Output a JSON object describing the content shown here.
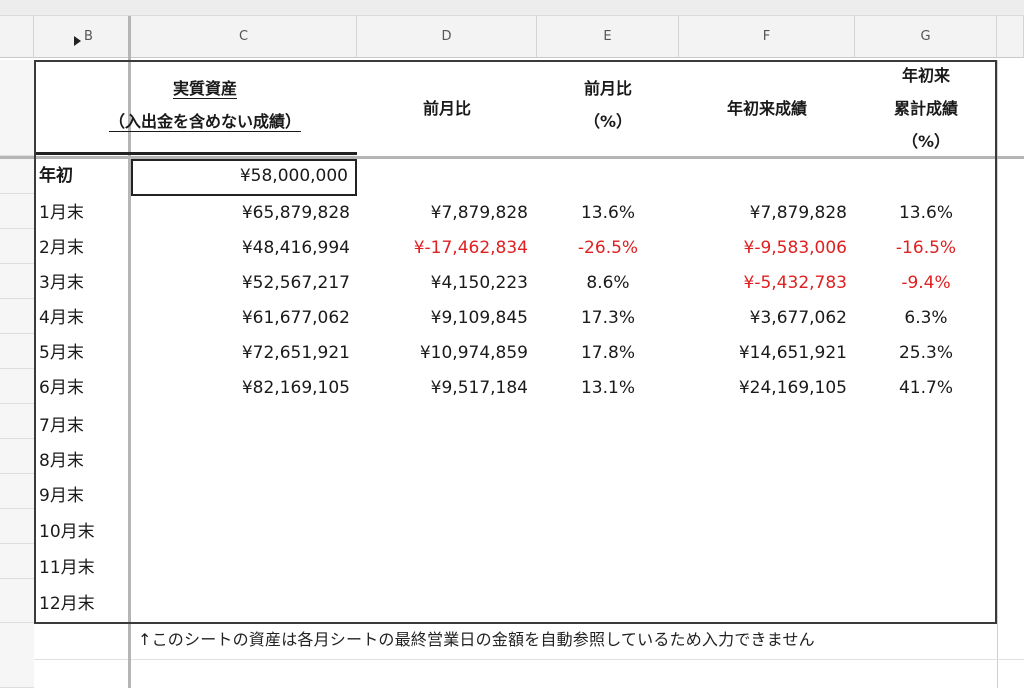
{
  "columns": [
    "B",
    "C",
    "D",
    "E",
    "F",
    "G"
  ],
  "header": {
    "c_line1": "実質資産",
    "c_line2": "（入出金を含めない成績）",
    "d": "前月比",
    "e_line1": "前月比",
    "e_line2": "（%）",
    "f": "年初来成績",
    "g_line1": "年初来",
    "g_line2": "累計成績",
    "g_line3": "（%）"
  },
  "initial": {
    "label": "年初",
    "assets": "¥58,000,000"
  },
  "rows": [
    {
      "label": "1月末",
      "assets": "¥65,879,828",
      "mom": "¥7,879,828",
      "mom_pct": "13.6%",
      "ytd": "¥7,879,828",
      "ytd_pct": "13.6%"
    },
    {
      "label": "2月末",
      "assets": "¥48,416,994",
      "mom": "¥-17,462,834",
      "mom_pct": "-26.5%",
      "ytd": "¥-9,583,006",
      "ytd_pct": "-16.5%"
    },
    {
      "label": "3月末",
      "assets": "¥52,567,217",
      "mom": "¥4,150,223",
      "mom_pct": "8.6%",
      "ytd": "¥-5,432,783",
      "ytd_pct": "-9.4%"
    },
    {
      "label": "4月末",
      "assets": "¥61,677,062",
      "mom": "¥9,109,845",
      "mom_pct": "17.3%",
      "ytd": "¥3,677,062",
      "ytd_pct": "6.3%"
    },
    {
      "label": "5月末",
      "assets": "¥72,651,921",
      "mom": "¥10,974,859",
      "mom_pct": "17.8%",
      "ytd": "¥14,651,921",
      "ytd_pct": "25.3%"
    },
    {
      "label": "6月末",
      "assets": "¥82,169,105",
      "mom": "¥9,517,184",
      "mom_pct": "13.1%",
      "ytd": "¥24,169,105",
      "ytd_pct": "41.7%"
    },
    {
      "label": "7月末"
    },
    {
      "label": "8月末"
    },
    {
      "label": "9月末"
    },
    {
      "label": "10月末"
    },
    {
      "label": "11月末"
    },
    {
      "label": "12月末"
    }
  ],
  "note": "↑このシートの資産は各月シートの最終営業日の金額を自動参照しているため入力できません",
  "colors": {
    "negative": "#e02020",
    "border": "#3a3a3a",
    "header_bg": "#f3f3f3"
  }
}
